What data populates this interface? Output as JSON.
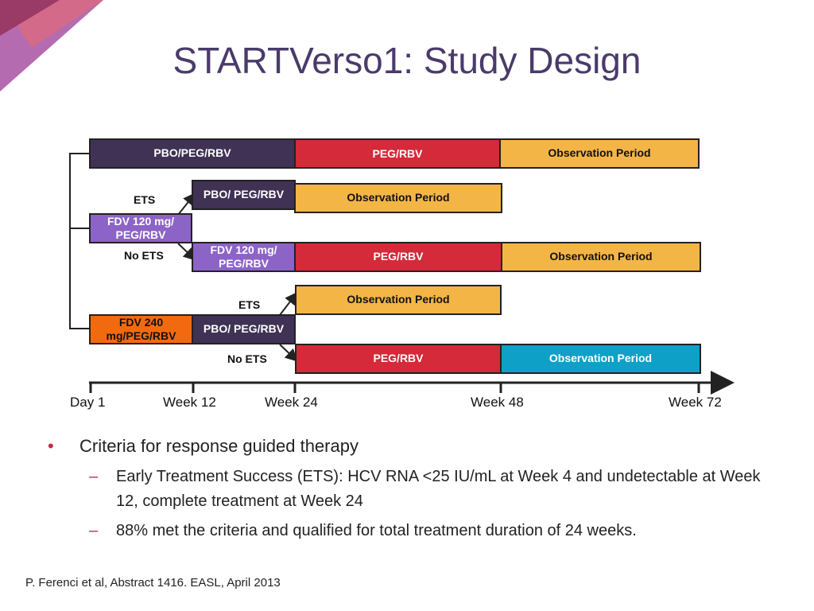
{
  "title": "STARTVerso1: Study Design",
  "colors": {
    "title": "#4a3b6b",
    "pbo": "#403254",
    "peg": "#d42a3a",
    "observation": "#f4b547",
    "observation_alt": "#0fa0c8",
    "fdv120": "#8c63c6",
    "fdv240": "#f26a10",
    "accent": "#c8284a"
  },
  "diagram": {
    "row1": {
      "pbo": "PBO/PEG/RBV",
      "peg": "PEG/RBV",
      "obs": "Observation Period"
    },
    "fdv120": {
      "start": "FDV 120 mg/ PEG/RBV",
      "ets_label": "ETS",
      "ets_pbo": "PBO/ PEG/RBV",
      "ets_obs": "Observation Period",
      "noets_label": "No ETS",
      "noets_fdv": "FDV 120 mg/ PEG/RBV",
      "noets_peg": "PEG/RBV",
      "noets_obs": "Observation Period"
    },
    "fdv240": {
      "start": "FDV 240 mg/PEG/RBV",
      "pbo": "PBO/ PEG/RBV",
      "ets_label": "ETS",
      "ets_obs": "Observation Period",
      "noets_label": "No ETS",
      "noets_peg": "PEG/RBV",
      "noets_obs": "Observation Period"
    },
    "timeline": [
      "Day 1",
      "Week 12",
      "Week 24",
      "Week 48",
      "Week 72"
    ]
  },
  "bullets": {
    "main": "Criteria for response guided therapy",
    "sub1": "Early Treatment Success (ETS): HCV RNA <25 IU/mL at Week 4 and undetectable at Week 12, complete treatment at Week 24",
    "sub2": "88% met the criteria and qualified for total treatment duration of 24 weeks."
  },
  "citation": "P. Ferenci et al, Abstract 1416. EASL, April 2013"
}
